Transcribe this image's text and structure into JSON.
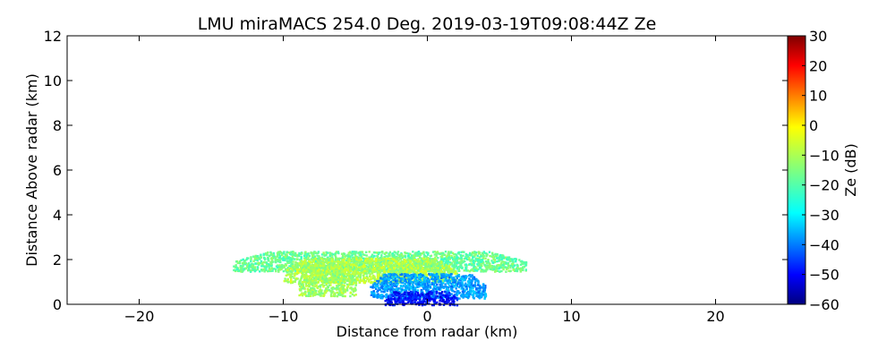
{
  "chart_data": {
    "type": "heatmap",
    "title": "LMU miraMACS 254.0 Deg. 2019-03-19T09:08:44Z  Ze",
    "xlabel": "Distance from radar (km)",
    "ylabel": "Distance Above radar  (km)",
    "xlim": [
      -25,
      25
    ],
    "ylim": [
      0,
      12
    ],
    "xticks": [
      -20,
      -10,
      0,
      10,
      20
    ],
    "xtick_labels": [
      "−20",
      "−10",
      "0",
      "10",
      "20"
    ],
    "yticks": [
      0,
      2,
      4,
      6,
      8,
      10,
      12
    ],
    "ytick_labels": [
      "0",
      "2",
      "4",
      "6",
      "8",
      "10",
      "12"
    ],
    "grid": false,
    "colorbar": {
      "label": "Ze (dB)",
      "range": [
        -60,
        30
      ],
      "ticks": [
        30,
        20,
        10,
        0,
        -10,
        -20,
        -30,
        -40,
        -50,
        -60
      ],
      "tick_labels": [
        "30",
        "20",
        "10",
        "0",
        "−10",
        "−20",
        "−30",
        "−40",
        "−50",
        "−60"
      ],
      "colormap": "jet"
    },
    "echo_regions": [
      {
        "x_range": [
          -13.5,
          6.8
        ],
        "top_km": 2.4,
        "bottom_km": 1.5,
        "ze_dB": -17
      },
      {
        "x_range": [
          -10,
          2
        ],
        "top_km": 2.1,
        "bottom_km": 1.0,
        "ze_dB": -11
      },
      {
        "x_range": [
          -9,
          -5
        ],
        "top_km": 1.8,
        "bottom_km": 0.4,
        "ze_dB": -12
      },
      {
        "x_range": [
          -4,
          4
        ],
        "top_km": 1.4,
        "bottom_km": 0.3,
        "ze_dB": -35
      },
      {
        "x_range": [
          -3,
          2
        ],
        "top_km": 0.6,
        "bottom_km": 0.0,
        "ze_dB": -48
      }
    ]
  }
}
